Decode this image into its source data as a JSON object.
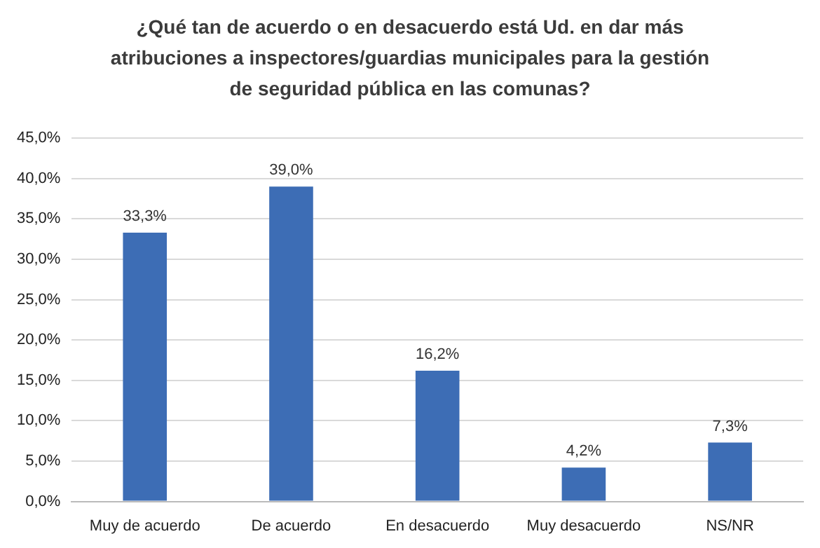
{
  "chart_data": {
    "type": "bar",
    "title": "¿Qué tan de acuerdo o en desacuerdo está Ud. en dar más atribuciones a inspectores/guardias  municipales para la gestión de seguridad pública en las comunas?",
    "categories": [
      "Muy de acuerdo",
      "De acuerdo",
      "En desacuerdo",
      "Muy desacuerdo",
      "NS/NR"
    ],
    "values": [
      33.3,
      39.0,
      16.2,
      4.2,
      7.3
    ],
    "value_labels": [
      "33,3%",
      "39,0%",
      "16,2%",
      "4,2%",
      "7,3%"
    ],
    "color": "#3d6db5",
    "ylim": [
      0,
      45
    ],
    "yticks": [
      {
        "value": 0,
        "label": "0,0%"
      },
      {
        "value": 5,
        "label": "5,0%"
      },
      {
        "value": 10,
        "label": "10,0%"
      },
      {
        "value": 15,
        "label": "15,0%"
      },
      {
        "value": 20,
        "label": "20,0%"
      },
      {
        "value": 25,
        "label": "25,0%"
      },
      {
        "value": 30,
        "label": "30,0%"
      },
      {
        "value": 35,
        "label": "35,0%"
      },
      {
        "value": 40,
        "label": "40,0%"
      },
      {
        "value": 45,
        "label": "45,0%"
      }
    ],
    "grid": "y",
    "legend": false
  }
}
